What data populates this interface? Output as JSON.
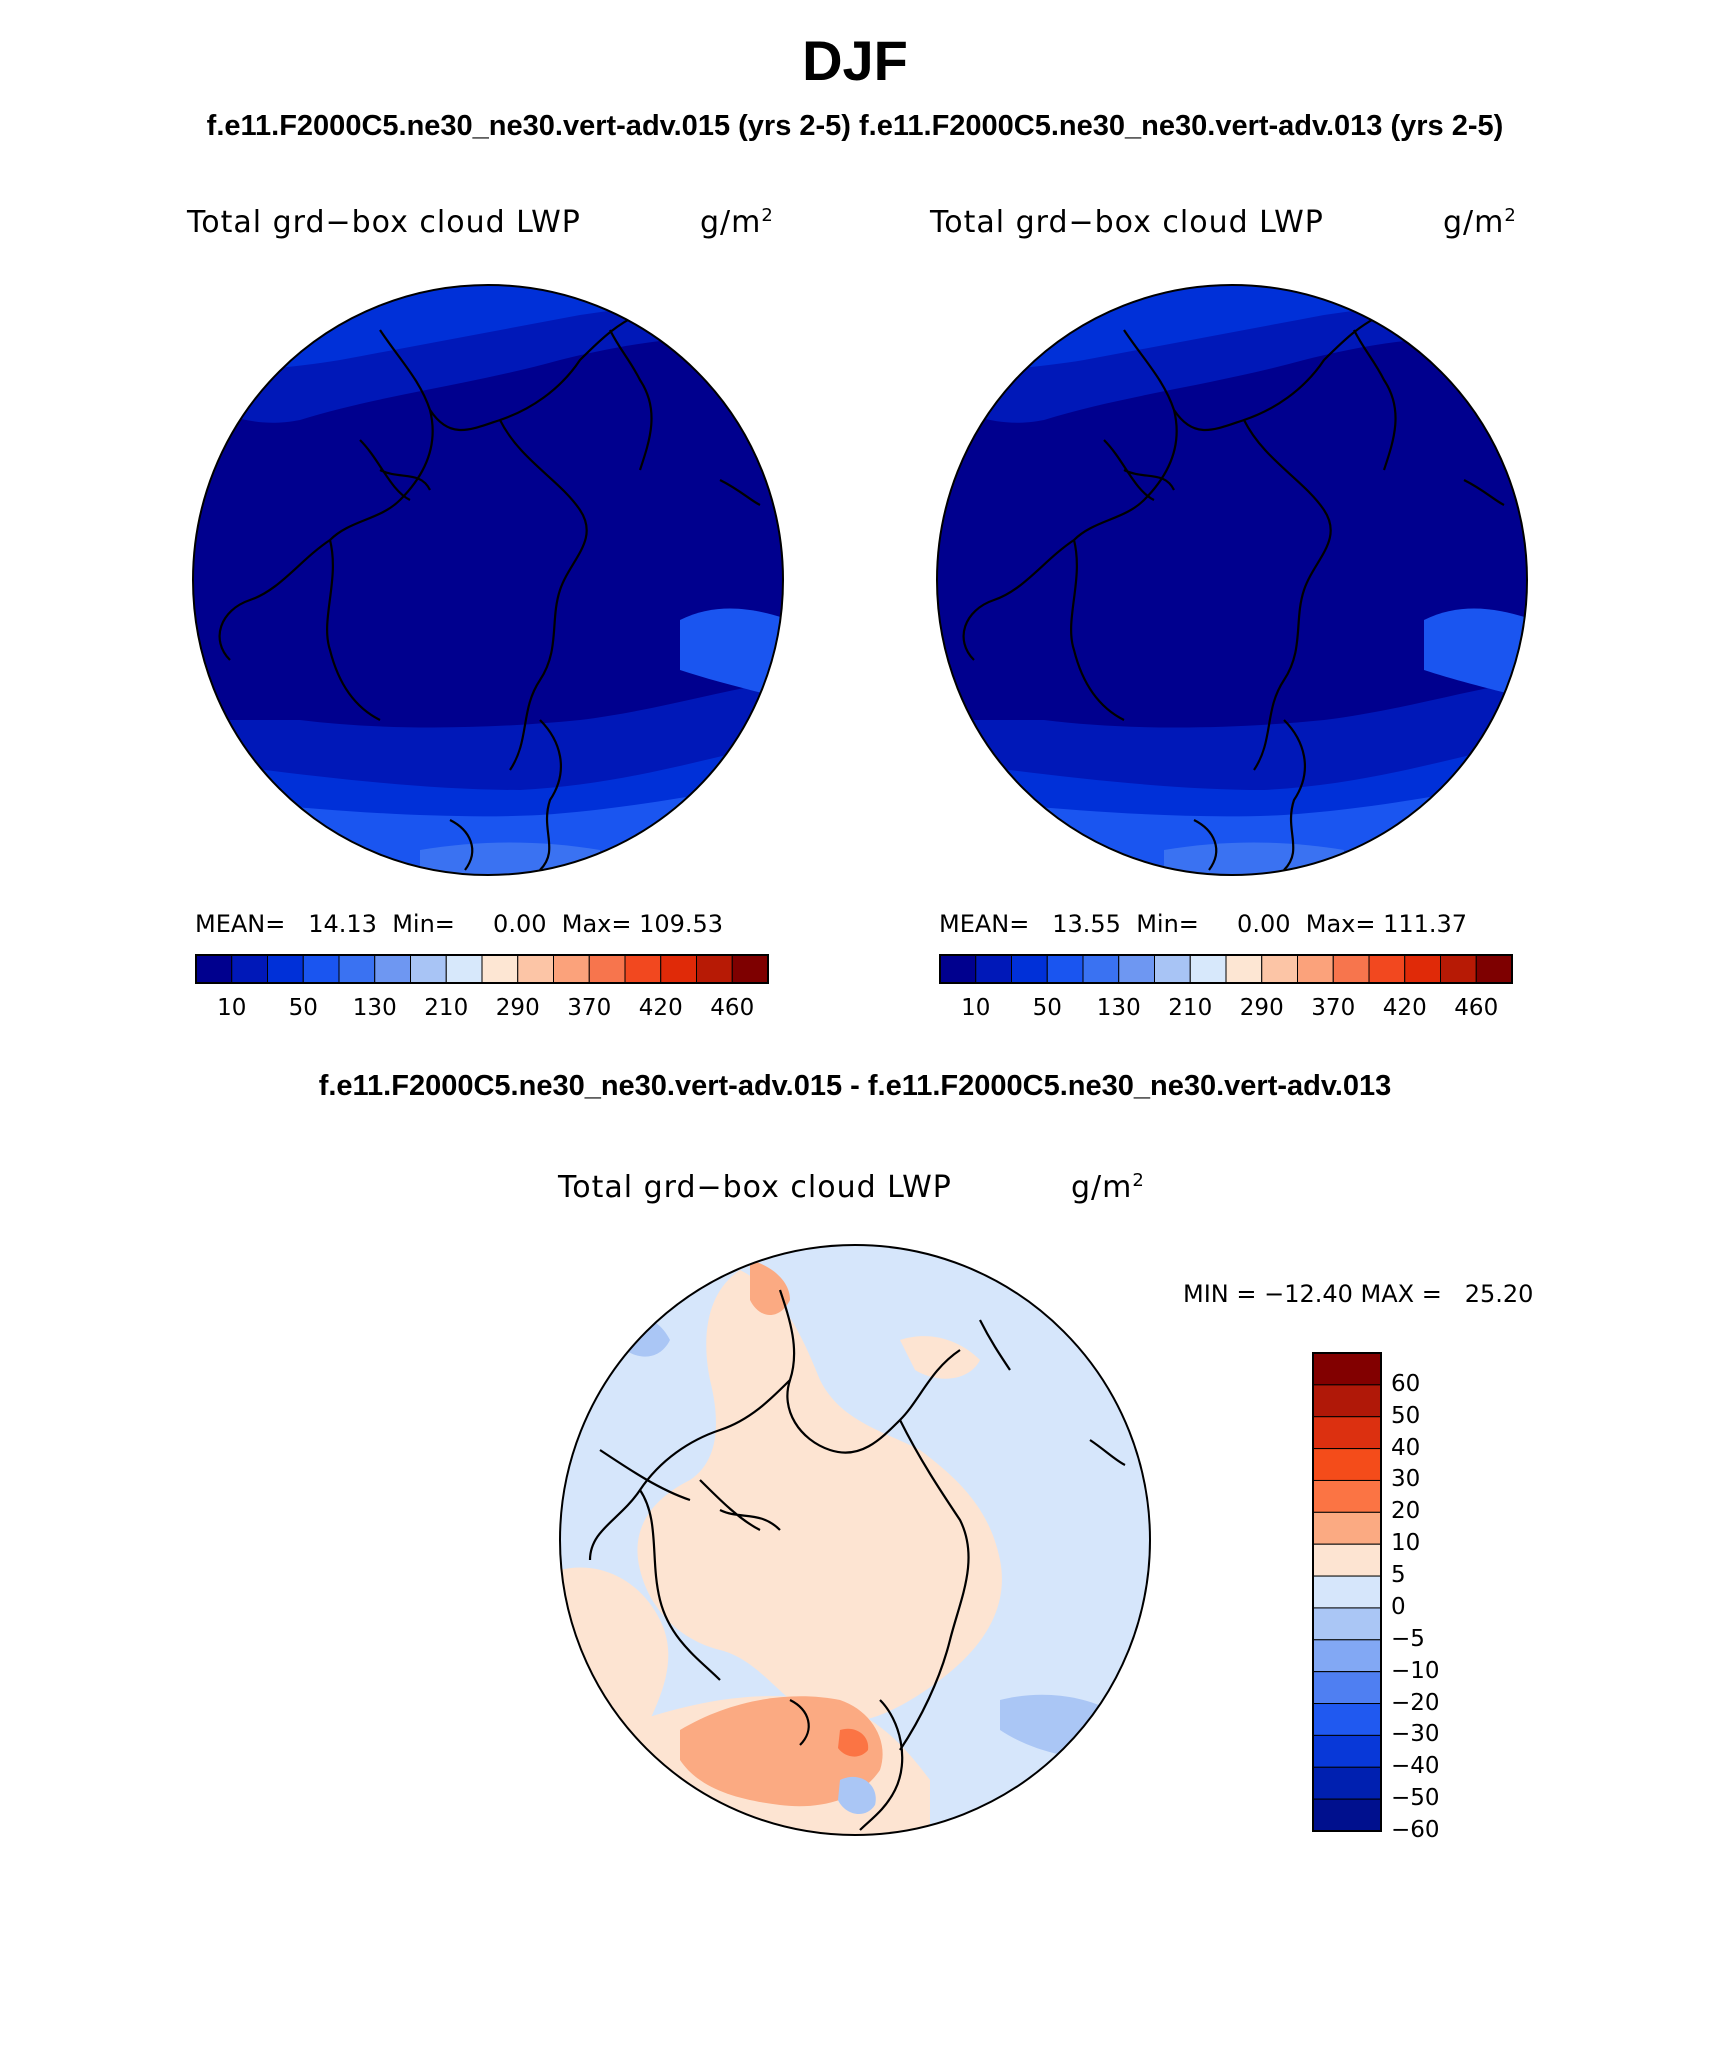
{
  "header": {
    "season": "DJF",
    "cases_line": "f.e11.F2000C5.ne30_ne30.vert-adv.015 (yrs 2-5)  f.e11.F2000C5.ne30_ne30.vert-adv.013 (yrs 2-5)",
    "diff_line": "f.e11.F2000C5.ne30_ne30.vert-adv.015 - f.e11.F2000C5.ne30_ne30.vert-adv.013"
  },
  "panels": [
    {
      "variable": "Total grd−box cloud LWP",
      "units_base": "g/m",
      "units_exp": "2",
      "stats": "MEAN=   14.13  Min=     0.00  Max= 109.53"
    },
    {
      "variable": "Total grd−box cloud LWP",
      "units_base": "g/m",
      "units_exp": "2",
      "stats": "MEAN=   13.55  Min=     0.00  Max= 111.37"
    }
  ],
  "colorbar_abs": {
    "colors": [
      "#00008e",
      "#0018b8",
      "#0030d8",
      "#1a55f0",
      "#3a72f2",
      "#6e97f2",
      "#a8c4f5",
      "#d7e8fb",
      "#fde6d3",
      "#fcc5a6",
      "#fba27b",
      "#f7754d",
      "#f2481f",
      "#e02a08",
      "#b71a05",
      "#7e0000"
    ],
    "labels": [
      "10",
      "50",
      "130",
      "210",
      "290",
      "370",
      "420",
      "460"
    ]
  },
  "diff_panel": {
    "variable": "Total grd−box cloud LWP",
    "units_base": "g/m",
    "units_exp": "2",
    "minmax": "MIN = −12.40 MAX =   25.20"
  },
  "colorbar_diff": {
    "colors": [
      "#820000",
      "#b01808",
      "#dc3010",
      "#f44c1a",
      "#fb7444",
      "#fbaa82",
      "#fde4d2",
      "#d6e6fb",
      "#aac6f5",
      "#82a8f4",
      "#4f7ff2",
      "#2059f0",
      "#0838d8",
      "#0020b0",
      "#00108e"
    ],
    "labels": [
      "60",
      "50",
      "40",
      "30",
      "20",
      "10",
      "5",
      "0",
      "−5",
      "−10",
      "−20",
      "−30",
      "−40",
      "−50",
      "−60"
    ]
  }
}
